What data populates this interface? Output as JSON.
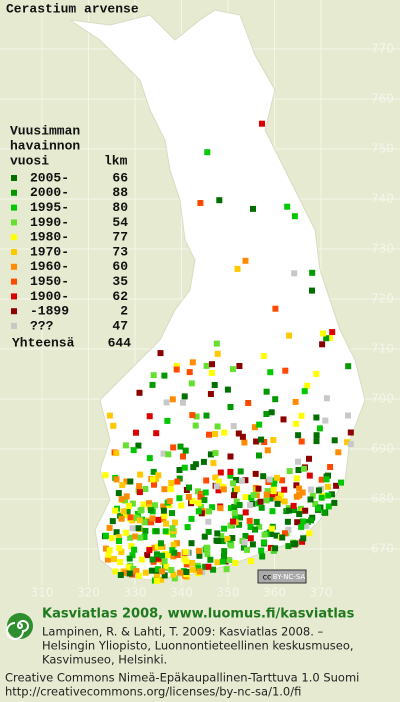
{
  "map": {
    "title": "Cerastium arvense",
    "legend": {
      "header": [
        "Vuusimman",
        "havainnon",
        "vuosi"
      ],
      "count_header": "lkm",
      "rows": [
        {
          "label": "2005-",
          "count": 66,
          "color": "#006f00"
        },
        {
          "label": "2000-",
          "count": 88,
          "color": "#009a00"
        },
        {
          "label": "1995-",
          "count": 80,
          "color": "#00c800"
        },
        {
          "label": "1990-",
          "count": 54,
          "color": "#66e030"
        },
        {
          "label": "1980-",
          "count": 77,
          "color": "#ffff00"
        },
        {
          "label": "1970-",
          "count": 73,
          "color": "#ffc800"
        },
        {
          "label": "1960-",
          "count": 60,
          "color": "#ff8c00"
        },
        {
          "label": "1950-",
          "count": 35,
          "color": "#ff4a00"
        },
        {
          "label": "1900-",
          "count": 62,
          "color": "#dc0000"
        },
        {
          "label": "-1899",
          "count": 2,
          "color": "#8c0000"
        },
        {
          "label": "???",
          "count": 47,
          "color": "#c8c8c8"
        }
      ],
      "total_label": "Yhteensä",
      "total": 644
    },
    "x_labels": [
      310,
      320,
      330,
      340,
      350,
      360,
      370
    ],
    "y_labels": [
      670,
      680,
      690,
      700,
      710,
      720,
      730,
      740,
      750,
      760,
      770
    ],
    "license_badge": [
      "cc",
      "BY-NC-SA"
    ],
    "footer": {
      "heading": "Kasviatlas 2008, www.luomus.fi/kasviatlas",
      "citation": [
        "Lampinen, R. & Lahti, T. 2009: Kasviatlas 2008. –",
        "Helsingin Yliopisto, Luonnontieteellinen keskusmuseo,",
        "Kasvimuseo, Helsinki."
      ],
      "license": [
        "Creative Commons Nimeä-Epäkaupallinen-Tarttuva 1.0 Suomi",
        "http://creativecommons.org/licenses/by-nc-sa/1.0/fi"
      ]
    }
  }
}
